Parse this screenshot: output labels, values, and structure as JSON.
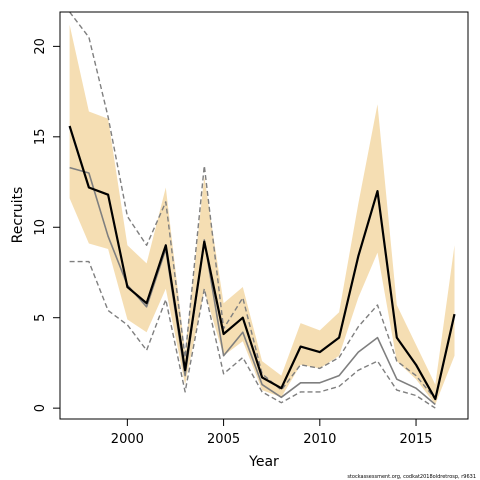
{
  "chart_data": {
    "type": "line",
    "xlabel": "Year",
    "ylabel": "Recruits",
    "xlim": [
      1996.5,
      2017.7
    ],
    "ylim": [
      -0.6,
      21.9
    ],
    "xticks": [
      2000,
      2005,
      2010,
      2015
    ],
    "yticks": [
      0,
      5,
      10,
      15,
      20
    ],
    "grid": false,
    "legend": "none",
    "colors": {
      "band": "#f5deb3",
      "main": "#000000",
      "alt": "#7f7f7f",
      "alt_bounds": "#7f7f7f"
    },
    "x": [
      1997,
      1998,
      1999,
      2000,
      2001,
      2002,
      2003,
      2004,
      2005,
      2006,
      2007,
      2008,
      2009,
      2010,
      2011,
      2012,
      2013,
      2014,
      2015,
      2016,
      2017
    ],
    "series": [
      {
        "role": "main",
        "values": [
          15.6,
          12.2,
          11.8,
          6.7,
          5.8,
          9.0,
          2.1,
          9.2,
          4.1,
          5.0,
          1.7,
          1.1,
          3.4,
          3.1,
          3.9,
          8.4,
          12.0,
          3.9,
          2.4,
          0.5,
          5.2
        ]
      },
      {
        "role": "band_upper",
        "values": [
          21.2,
          16.4,
          16.0,
          9.0,
          8.0,
          12.2,
          3.1,
          12.8,
          5.8,
          6.7,
          2.6,
          1.8,
          4.7,
          4.3,
          5.3,
          11.3,
          16.8,
          5.7,
          3.5,
          1.3,
          9.0
        ]
      },
      {
        "role": "band_lower",
        "values": [
          11.6,
          9.1,
          8.8,
          4.9,
          4.2,
          6.6,
          1.3,
          6.5,
          2.9,
          3.7,
          1.0,
          0.6,
          2.4,
          2.2,
          2.9,
          6.1,
          8.6,
          2.6,
          1.6,
          0.2,
          2.9
        ]
      },
      {
        "role": "alt",
        "values": [
          13.3,
          13.0,
          9.5,
          6.8,
          5.6,
          8.8,
          1.8,
          9.3,
          2.9,
          4.2,
          1.3,
          0.6,
          1.4,
          1.4,
          1.8,
          3.1,
          3.9,
          1.6,
          1.1,
          0.2,
          null
        ]
      },
      {
        "role": "alt_upper",
        "values": [
          21.9,
          20.5,
          16.1,
          10.6,
          9.0,
          11.4,
          2.8,
          13.4,
          4.4,
          6.1,
          1.9,
          1.0,
          2.4,
          2.2,
          2.8,
          4.5,
          5.7,
          2.6,
          1.8,
          0.5,
          null
        ]
      },
      {
        "role": "alt_lower",
        "values": [
          8.1,
          8.1,
          5.4,
          4.6,
          3.2,
          6.0,
          0.9,
          6.6,
          1.9,
          2.8,
          0.9,
          0.3,
          0.9,
          0.9,
          1.2,
          2.1,
          2.6,
          1.0,
          0.7,
          0.0,
          null
        ]
      }
    ],
    "credit": "stockassessment.org, codkat2018oldretrosp, r9631"
  }
}
